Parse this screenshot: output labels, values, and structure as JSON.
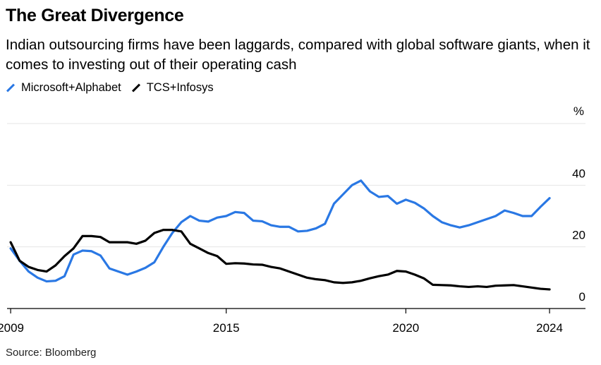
{
  "header": {
    "title": "The Great Divergence",
    "subtitle": "Indian outsourcing firms have been laggards, compared with global software giants, when it comes to investing out of their operating cash"
  },
  "source": "Source: Bloomberg",
  "chart_data": {
    "type": "line",
    "ylabel": "%",
    "ylim": [
      0,
      60
    ],
    "xlim": [
      2008.9,
      2025
    ],
    "yticks": [
      0,
      20,
      40
    ],
    "ytick_labels": [
      "0",
      "20",
      "40"
    ],
    "xticks": [
      2009,
      2015,
      2020,
      2024
    ],
    "xtick_labels": [
      "2009",
      "2015",
      "2020",
      "2024"
    ],
    "legend_position": "top-left",
    "series": [
      {
        "name": "Microsoft+Alphabet",
        "color": "#2a78e4",
        "x": [
          2009.0,
          2009.25,
          2009.5,
          2009.75,
          2010.0,
          2010.25,
          2010.5,
          2010.75,
          2011.0,
          2011.25,
          2011.5,
          2011.75,
          2012.0,
          2012.25,
          2012.5,
          2012.75,
          2013.0,
          2013.25,
          2013.5,
          2013.75,
          2014.0,
          2014.25,
          2014.5,
          2014.75,
          2015.0,
          2015.25,
          2015.5,
          2015.75,
          2016.0,
          2016.25,
          2016.5,
          2016.75,
          2017.0,
          2017.25,
          2017.5,
          2017.75,
          2018.0,
          2018.25,
          2018.5,
          2018.75,
          2019.0,
          2019.25,
          2019.5,
          2019.75,
          2020.0,
          2020.25,
          2020.5,
          2020.75,
          2021.0,
          2021.25,
          2021.5,
          2021.75,
          2022.0,
          2022.25,
          2022.5,
          2022.75,
          2023.0,
          2023.25,
          2023.5,
          2023.75,
          2024.0
        ],
        "values": [
          19.5,
          15.5,
          12.0,
          10.0,
          8.8,
          9.0,
          10.5,
          17.5,
          18.8,
          18.6,
          17.2,
          13.0,
          12.0,
          11.0,
          12.0,
          13.2,
          15.0,
          20.0,
          24.5,
          28.0,
          30.0,
          28.5,
          28.2,
          29.5,
          30.0,
          31.3,
          31.0,
          28.5,
          28.3,
          27.0,
          26.5,
          26.5,
          25.0,
          25.2,
          26.0,
          27.5,
          34.0,
          37.0,
          40.0,
          41.5,
          38.0,
          36.2,
          36.5,
          34.0,
          35.3,
          34.3,
          32.5,
          30.0,
          28.0,
          27.0,
          26.3,
          27.0,
          28.0,
          29.0,
          30.0,
          31.8,
          31.0,
          30.0,
          30.0,
          33.0,
          35.8
        ]
      },
      {
        "name": "TCS+Infosys",
        "color": "#000000",
        "x": [
          2009.0,
          2009.25,
          2009.5,
          2009.75,
          2010.0,
          2010.25,
          2010.5,
          2010.75,
          2011.0,
          2011.25,
          2011.5,
          2011.75,
          2012.0,
          2012.25,
          2012.5,
          2012.75,
          2013.0,
          2013.25,
          2013.5,
          2013.75,
          2014.0,
          2014.25,
          2014.5,
          2014.75,
          2015.0,
          2015.25,
          2015.5,
          2015.75,
          2016.0,
          2016.25,
          2016.5,
          2016.75,
          2017.0,
          2017.25,
          2017.5,
          2017.75,
          2018.0,
          2018.25,
          2018.5,
          2018.75,
          2019.0,
          2019.25,
          2019.5,
          2019.75,
          2020.0,
          2020.25,
          2020.5,
          2020.75,
          2021.0,
          2021.25,
          2021.5,
          2021.75,
          2022.0,
          2022.25,
          2022.5,
          2022.75,
          2023.0,
          2023.25,
          2023.5,
          2023.75,
          2024.0
        ],
        "values": [
          21.5,
          15.5,
          13.5,
          12.5,
          12.0,
          14.0,
          17.0,
          19.5,
          23.5,
          23.5,
          23.2,
          21.5,
          21.5,
          21.5,
          21.0,
          22.0,
          24.5,
          25.5,
          25.5,
          25.0,
          21.0,
          19.5,
          18.0,
          17.0,
          14.5,
          14.7,
          14.6,
          14.3,
          14.2,
          13.5,
          13.0,
          12.0,
          11.0,
          10.0,
          9.5,
          9.2,
          8.5,
          8.3,
          8.5,
          9.0,
          9.8,
          10.5,
          11.0,
          12.2,
          12.0,
          11.0,
          9.8,
          7.7,
          7.6,
          7.5,
          7.2,
          7.0,
          7.2,
          7.0,
          7.4,
          7.5,
          7.6,
          7.2,
          6.8,
          6.4,
          6.2
        ]
      }
    ]
  }
}
